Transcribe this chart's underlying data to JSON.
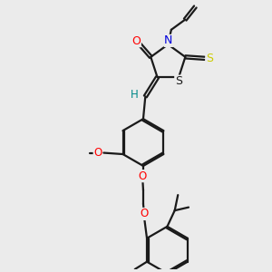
{
  "bg_color": "#ebebeb",
  "bond_color": "#1a1a1a",
  "bond_lw": 1.6,
  "figsize": [
    3.0,
    3.0
  ],
  "dpi": 100,
  "xlim": [
    0,
    10
  ],
  "ylim": [
    0,
    10
  ],
  "colors": {
    "O": "#ff0000",
    "N": "#0000dd",
    "S_thione": "#cccc00",
    "S_ring": "#1a1a1a",
    "H": "#008888",
    "C": "#1a1a1a"
  }
}
